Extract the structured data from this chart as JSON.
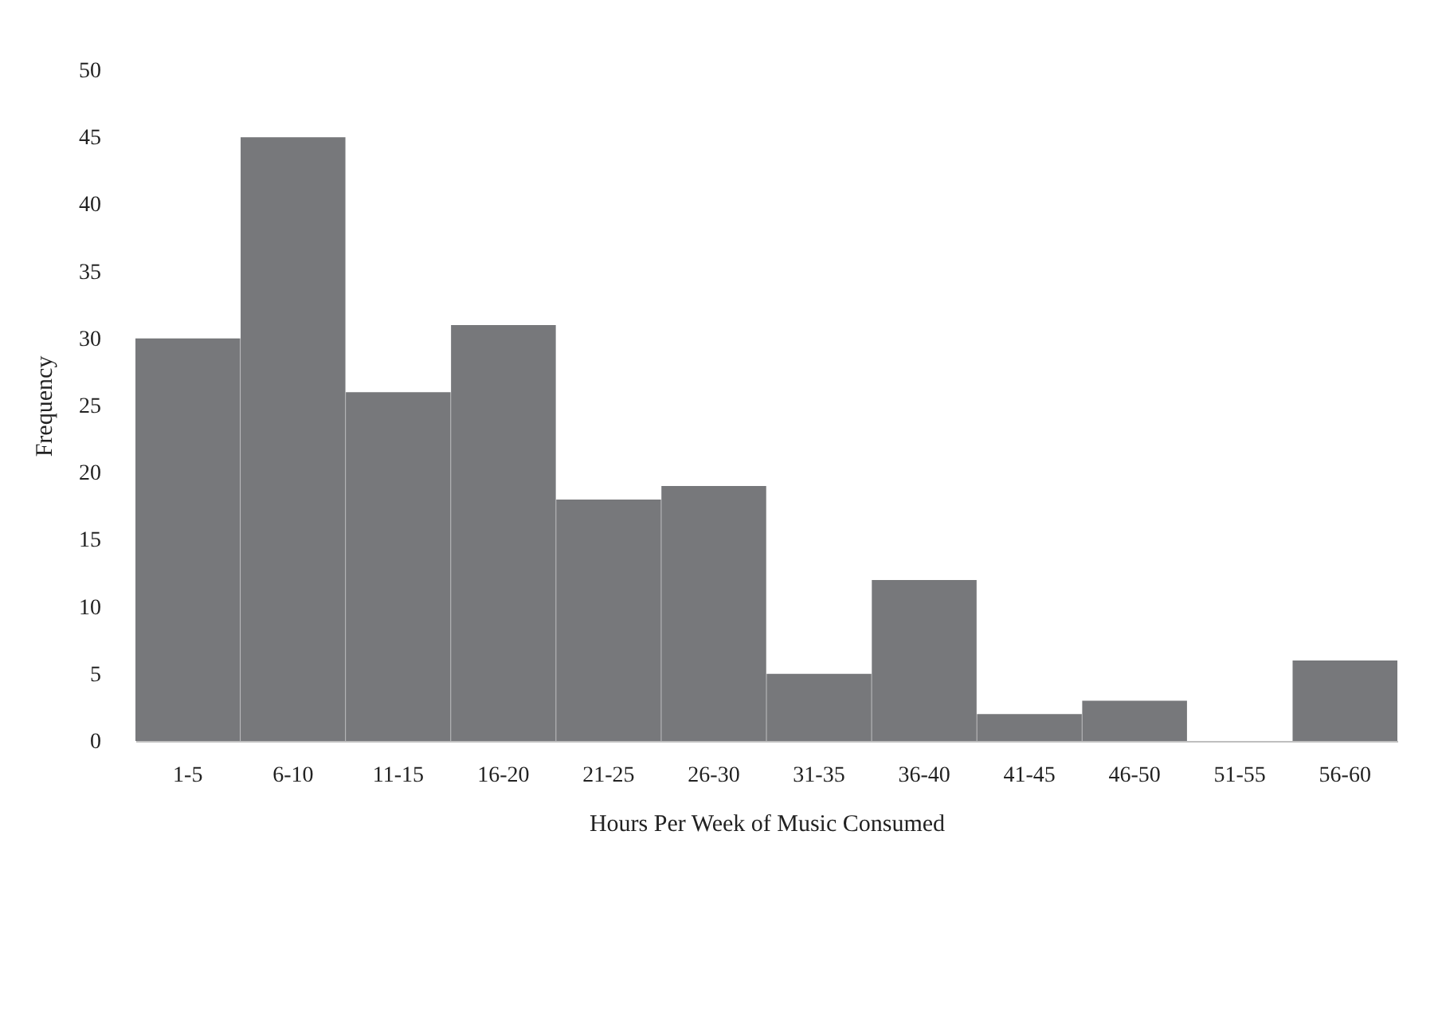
{
  "chart_data": {
    "type": "bar",
    "xlabel": "Hours Per Week of Music Consumed",
    "ylabel": "Frequency",
    "categories": [
      "1-5",
      "6-10",
      "11-15",
      "16-20",
      "21-25",
      "26-30",
      "31-35",
      "36-40",
      "41-45",
      "46-50",
      "51-55",
      "56-60"
    ],
    "values": [
      30,
      45,
      26,
      31,
      18,
      19,
      5,
      12,
      2,
      3,
      0,
      6
    ],
    "color": "#77787b",
    "ylim": [
      0,
      50
    ],
    "yticks": [
      0,
      5,
      10,
      15,
      20,
      25,
      30,
      35,
      40,
      45,
      50
    ],
    "grid": false
  }
}
